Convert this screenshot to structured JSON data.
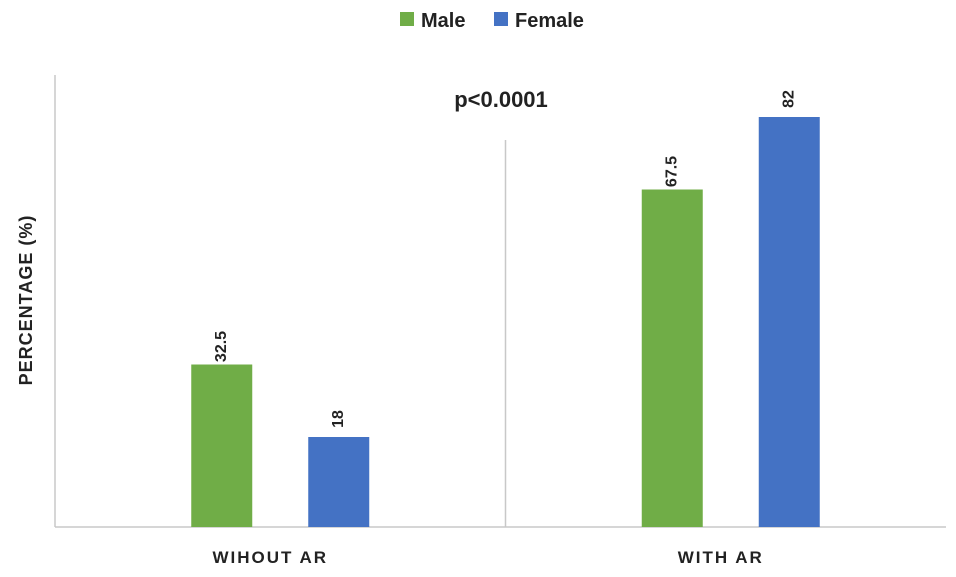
{
  "chart_data": {
    "type": "bar",
    "categories": [
      "WIHOUT AR",
      "WITH AR"
    ],
    "series": [
      {
        "name": "Male",
        "values": [
          32.5,
          67.5
        ],
        "color": "#70AD47"
      },
      {
        "name": "Female",
        "values": [
          18,
          82
        ],
        "color": "#4472C4"
      }
    ],
    "title": "",
    "xlabel": "",
    "ylabel": "PERCENTAGE (%)",
    "ylim": [
      0,
      85
    ],
    "grid": false,
    "legend": "top-center",
    "annotations": [
      "p<0.0001"
    ]
  }
}
